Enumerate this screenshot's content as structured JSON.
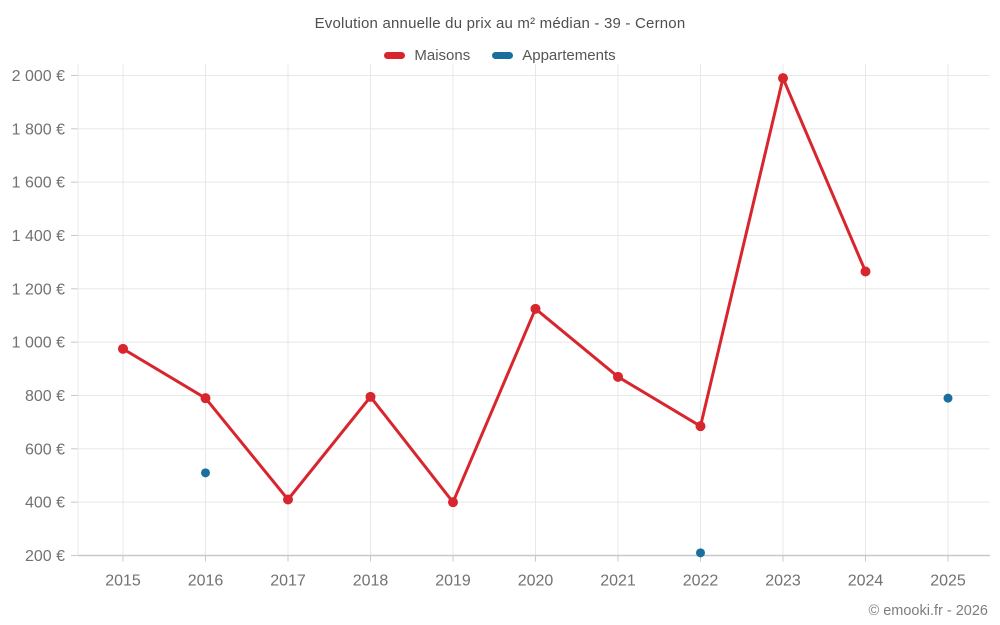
{
  "page": {
    "title": "Evolution annuelle du prix au m² médian - 39 - Cernon",
    "footer": "© emooki.fr - 2026"
  },
  "legend": {
    "items": [
      {
        "label": "Maisons",
        "color": "#d8262e"
      },
      {
        "label": "Appartements",
        "color": "#1a6f9e"
      }
    ]
  },
  "colors": {
    "maisons": "#d8262e",
    "appartements": "#1a6f9e",
    "grid": "#e8e8e8",
    "axis": "#c8c8c8",
    "tick_label": "#727272"
  },
  "chart_data": {
    "type": "line",
    "title": "Evolution annuelle du prix au m² médian - 39 - Cernon",
    "x": [
      2015,
      2016,
      2017,
      2018,
      2019,
      2020,
      2021,
      2022,
      2023,
      2024,
      2025
    ],
    "series": [
      {
        "name": "Maisons",
        "color": "#d8262e",
        "style": "line-with-points",
        "values": [
          975,
          790,
          410,
          795,
          400,
          1125,
          870,
          685,
          1990,
          1265,
          null
        ]
      },
      {
        "name": "Appartements",
        "color": "#1a6f9e",
        "style": "points-only",
        "values": [
          null,
          510,
          null,
          null,
          null,
          null,
          null,
          210,
          null,
          null,
          790
        ]
      }
    ],
    "xlabel": "",
    "ylabel": "",
    "ylim": [
      200,
      2000
    ],
    "ytick_step": 200,
    "ytick_labels": [
      "200 €",
      "400 €",
      "600 €",
      "800 €",
      "1 000 €",
      "1 200 €",
      "1 400 €",
      "1 600 €",
      "1 800 €",
      "2 000 €"
    ],
    "grid": true,
    "legend_position": "top"
  }
}
